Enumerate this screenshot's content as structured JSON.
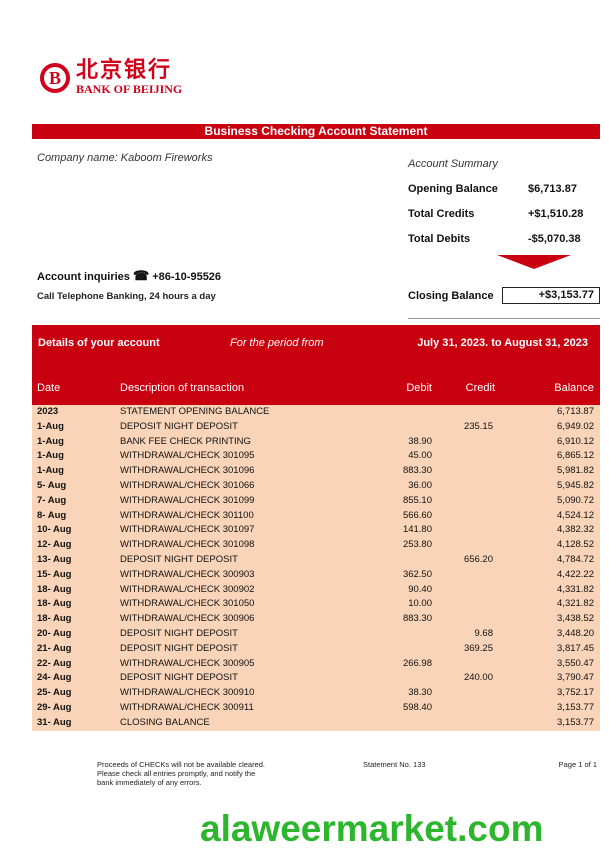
{
  "brand": {
    "name_cn": "北京银行",
    "name_en": "BANK OF BEIJING",
    "color": "#d0021b"
  },
  "title": "Business Checking Account Statement",
  "company": "Company name: Kaboom Fireworks",
  "summary": {
    "heading": "Account Summary",
    "opening_label": "Opening Balance",
    "opening": "$6,713.87",
    "credits_label": "Total Credits",
    "credits": "+$1,510.28",
    "debits_label": "Total Debits",
    "debits": "-$5,070.38",
    "closing_label": "Closing Balance",
    "closing": "+$3,153.77"
  },
  "inquiries": {
    "label": "Account inquiries",
    "phone": "+86-10-95526",
    "note": "Call Telephone Banking, 24 hours a day"
  },
  "details": {
    "heading": "Details of your account",
    "period_label": "For the period from",
    "period": "July 31, 2023. to August 31, 2023"
  },
  "columns": [
    "Date",
    "Description of transaction",
    "Debit",
    "Credit",
    "Balance"
  ],
  "rows": [
    [
      "2023",
      "STATEMENT OPENING BALANCE",
      "",
      "",
      "6,713.87"
    ],
    [
      "1-Aug",
      "DEPOSIT NIGHT DEPOSIT",
      "",
      "235.15",
      "6,949.02"
    ],
    [
      "1-Aug",
      "BANK FEE CHECK PRINTING",
      "38.90",
      "",
      "6,910.12"
    ],
    [
      "1-Aug",
      "WITHDRAWAL/CHECK 301095",
      "45.00",
      "",
      "6,865.12"
    ],
    [
      "1-Aug",
      "WITHDRAWAL/CHECK 301096",
      "883.30",
      "",
      "5,981.82"
    ],
    [
      "5- Aug",
      "WITHDRAWAL/CHECK 301066",
      "36.00",
      "",
      "5,945.82"
    ],
    [
      "7- Aug",
      "WITHDRAWAL/CHECK 301099",
      "855.10",
      "",
      "5,090.72"
    ],
    [
      "8- Aug",
      "WITHDRAWAL/CHECK 301100",
      "566.60",
      "",
      "4,524.12"
    ],
    [
      "10- Aug",
      "WITHDRAWAL/CHECK 301097",
      "141.80",
      "",
      "4,382.32"
    ],
    [
      "12- Aug",
      "WITHDRAWAL/CHECK 301098",
      "253.80",
      "",
      "4,128.52"
    ],
    [
      "13- Aug",
      "DEPOSIT NIGHT DEPOSIT",
      "",
      "656.20",
      "4,784.72"
    ],
    [
      "15- Aug",
      "WITHDRAWAL/CHECK 300903",
      "362.50",
      "",
      "4,422.22"
    ],
    [
      "18- Aug",
      "WITHDRAWAL/CHECK 300902",
      "90.40",
      "",
      "4,331.82"
    ],
    [
      "18- Aug",
      "WITHDRAWAL/CHECK 301050",
      "10.00",
      "",
      "4,321.82"
    ],
    [
      "18- Aug",
      "WITHDRAWAL/CHECK 300906",
      "883.30",
      "",
      "3,438.52"
    ],
    [
      "20- Aug",
      "DEPOSIT NIGHT DEPOSIT",
      "",
      "9.68",
      "3,448.20"
    ],
    [
      "21- Aug",
      "DEPOSIT NIGHT DEPOSIT",
      "",
      "369.25",
      "3,817.45"
    ],
    [
      "22- Aug",
      "WITHDRAWAL/CHECK 300905",
      "266.98",
      "",
      "3,550.47"
    ],
    [
      "24- Aug",
      "DEPOSIT NIGHT DEPOSIT",
      "",
      "240.00",
      "3,790.47"
    ],
    [
      "25- Aug",
      "WITHDRAWAL/CHECK 300910",
      "38.30",
      "",
      "3,752.17"
    ],
    [
      "29- Aug",
      "WITHDRAWAL/CHECK 300911",
      "598.40",
      "",
      "3,153.77"
    ],
    [
      "31- Aug",
      "CLOSING BALANCE",
      "",
      "",
      "3,153.77"
    ]
  ],
  "footer": {
    "notice": "Proceeds of CHECKs will not be available cleared. Please check all entries promptly, and notify the bank immediately of any errors.",
    "statement_no": "Statement No. 133",
    "page": "Page 1 of 1"
  },
  "watermark": "alaweermarket.com"
}
